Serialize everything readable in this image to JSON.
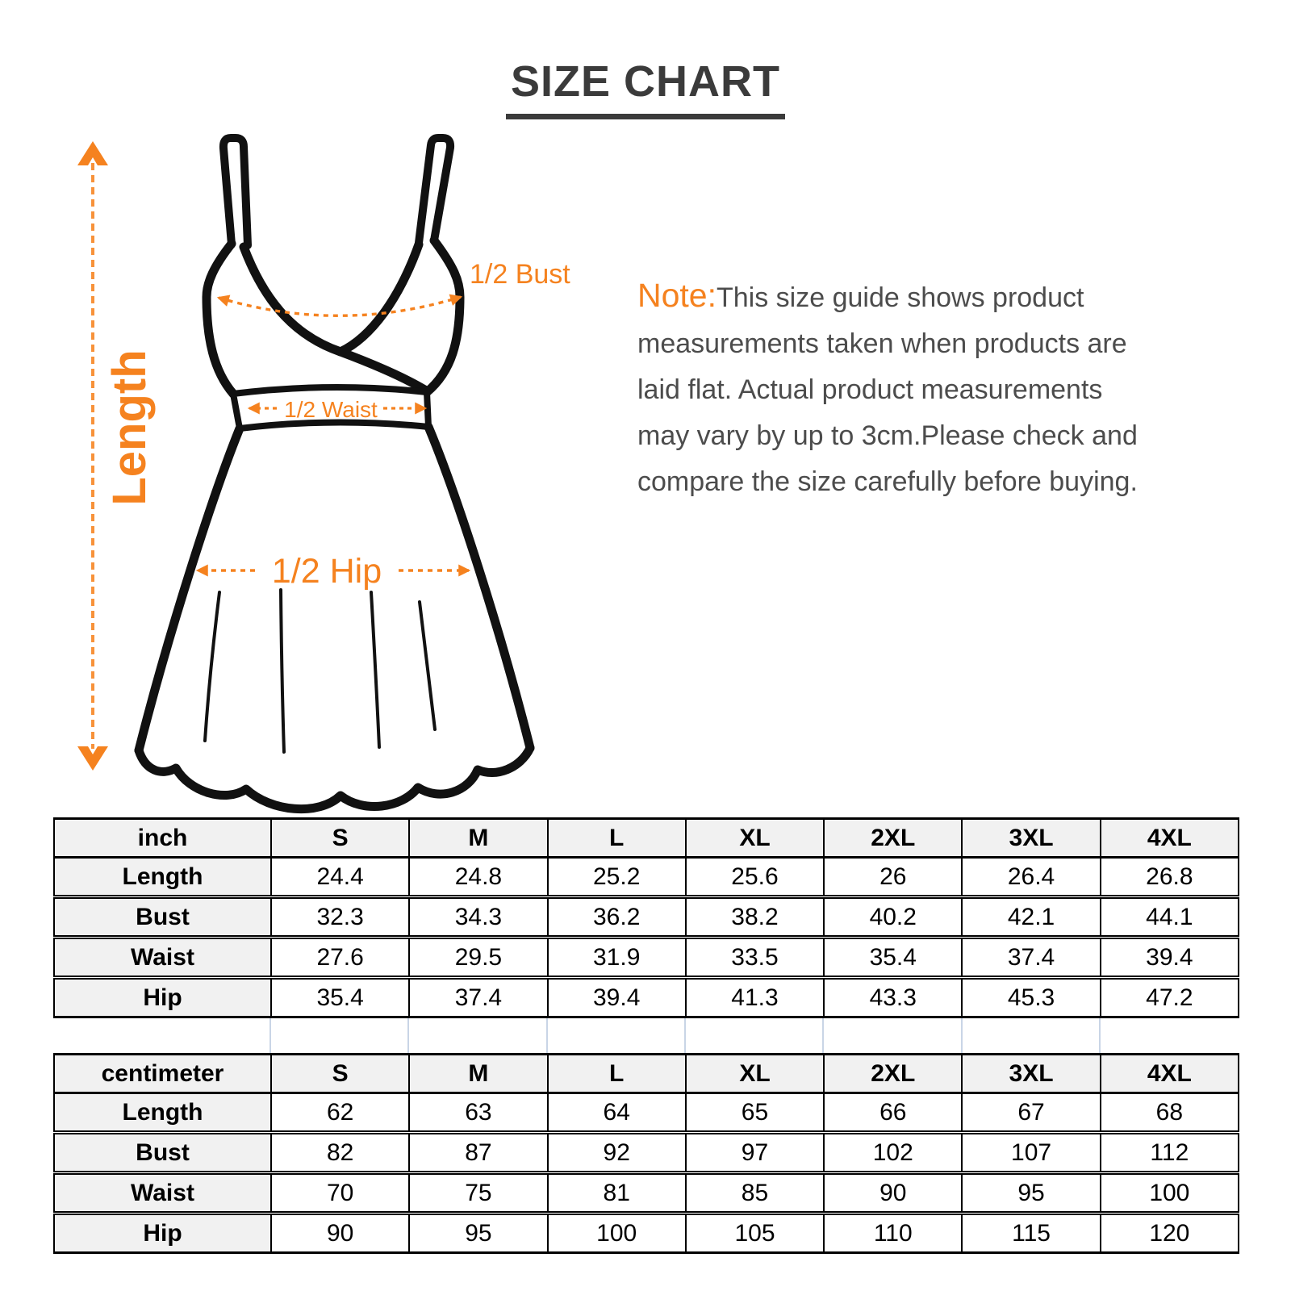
{
  "title": "SIZE CHART",
  "note": {
    "label": "Note:",
    "text": "This size guide shows product\nmeasurements taken when products are\nlaid flat. Actual product measurements\nmay vary by up to 3cm.Please check and\ncompare the size carefully before buying."
  },
  "diagram": {
    "length_label": "Length",
    "bust_label": "1/2 Bust",
    "waist_label": "1/2 Waist",
    "hip_label": "1/2 Hip"
  },
  "colors": {
    "accent_orange": "#f5821f",
    "title_text": "#3b3b3b",
    "note_text": "#4c4c4c",
    "table_border": "#000000",
    "table_header_bg": "#f1f1f1",
    "gap_line_blue": "#c9d5e6",
    "drawing_stroke": "#111111"
  },
  "tables": [
    {
      "unit": "inch",
      "sizes": [
        "S",
        "M",
        "L",
        "XL",
        "2XL",
        "3XL",
        "4XL"
      ],
      "rows": [
        {
          "label": "Length",
          "values": [
            "24.4",
            "24.8",
            "25.2",
            "25.6",
            "26",
            "26.4",
            "26.8"
          ]
        },
        {
          "label": "Bust",
          "values": [
            "32.3",
            "34.3",
            "36.2",
            "38.2",
            "40.2",
            "42.1",
            "44.1"
          ]
        },
        {
          "label": "Waist",
          "values": [
            "27.6",
            "29.5",
            "31.9",
            "33.5",
            "35.4",
            "37.4",
            "39.4"
          ]
        },
        {
          "label": "Hip",
          "values": [
            "35.4",
            "37.4",
            "39.4",
            "41.3",
            "43.3",
            "45.3",
            "47.2"
          ]
        }
      ]
    },
    {
      "unit": "centimeter",
      "sizes": [
        "S",
        "M",
        "L",
        "XL",
        "2XL",
        "3XL",
        "4XL"
      ],
      "rows": [
        {
          "label": "Length",
          "values": [
            "62",
            "63",
            "64",
            "65",
            "66",
            "67",
            "68"
          ]
        },
        {
          "label": "Bust",
          "values": [
            "82",
            "87",
            "92",
            "97",
            "102",
            "107",
            "112"
          ]
        },
        {
          "label": "Waist",
          "values": [
            "70",
            "75",
            "81",
            "85",
            "90",
            "95",
            "100"
          ]
        },
        {
          "label": "Hip",
          "values": [
            "90",
            "95",
            "100",
            "105",
            "110",
            "115",
            "120"
          ]
        }
      ]
    }
  ]
}
